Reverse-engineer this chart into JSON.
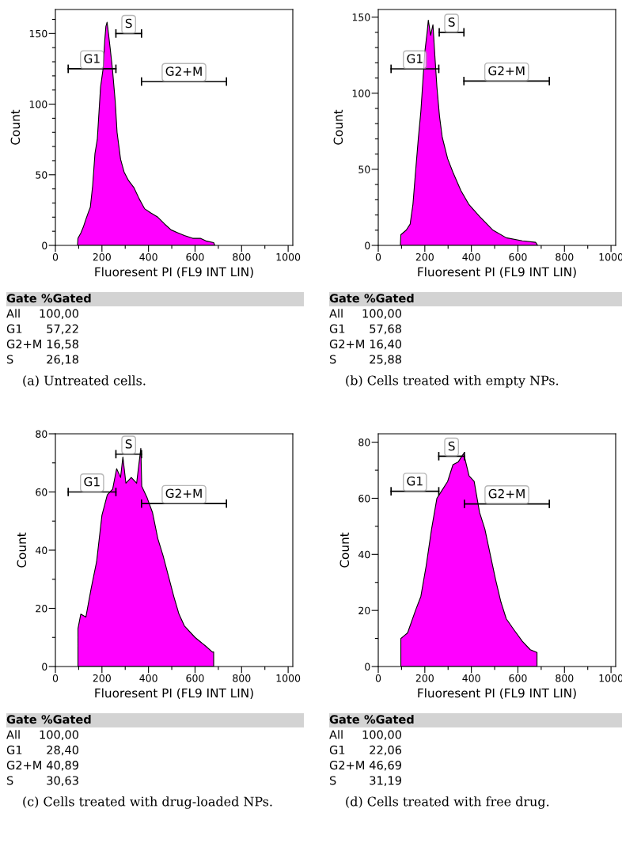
{
  "chart_data": [
    {
      "type": "area",
      "title": "(a) Untreated cells.",
      "xlabel": "Fluoresent PI (FL9 INT LIN)",
      "ylabel": "Count",
      "xlim": [
        0,
        1020
      ],
      "ylim": [
        0,
        167
      ],
      "xticks": [
        0,
        {
          "value": 100,
          "label": null
        },
        200,
        {
          "value": 300,
          "label": null
        },
        400,
        {
          "value": 500,
          "label": null
        },
        600,
        {
          "value": 700,
          "label": null
        },
        800,
        {
          "value": 900,
          "label": null
        },
        1000
      ],
      "yticks": [
        0,
        {
          "value": 10,
          "label": null
        },
        {
          "value": 20,
          "label": null
        },
        {
          "value": 30,
          "label": null
        },
        {
          "value": 40,
          "label": null
        },
        50,
        {
          "value": 60,
          "label": null
        },
        {
          "value": 70,
          "label": null
        },
        {
          "value": 80,
          "label": null
        },
        {
          "value": 90,
          "label": null
        },
        100,
        {
          "value": 110,
          "label": null
        },
        {
          "value": 120,
          "label": null
        },
        {
          "value": 130,
          "label": null
        },
        {
          "value": 140,
          "label": null
        },
        150,
        {
          "value": 160,
          "label": null
        }
      ],
      "series": [
        {
          "color": "#ff00ff",
          "x": [
            95,
            97,
            110,
            120,
            130,
            143,
            150,
            160,
            170,
            180,
            194,
            205,
            212,
            217,
            222,
            228,
            235,
            245,
            257,
            265,
            280,
            295,
            314,
            337,
            360,
            383,
            410,
            440,
            470,
            497,
            525,
            554,
            590,
            623,
            650,
            680,
            685
          ],
          "values": [
            0,
            5,
            9,
            13,
            18,
            24,
            27,
            42,
            65,
            75,
            112,
            125,
            145,
            155,
            158,
            150,
            140,
            125,
            102,
            80,
            61,
            52,
            46,
            41,
            33,
            26,
            23,
            20,
            15,
            11,
            9,
            7,
            5,
            5,
            3,
            2,
            0
          ]
        },
        {
          "type": "line",
          "name": "G1",
          "color": "#000000",
          "x": [
            55,
            260
          ],
          "values": [
            125,
            125
          ]
        },
        {
          "type": "line",
          "name": "S",
          "color": "#000000",
          "x": [
            260,
            370
          ],
          "values": [
            150,
            150
          ]
        },
        {
          "type": "line",
          "name": "G2+M",
          "color": "#000000",
          "x": [
            370,
            735
          ],
          "values": [
            116,
            116
          ]
        }
      ],
      "annotations": [
        "Gate",
        "%Gated",
        "All",
        "100,00",
        "G1",
        "57,22",
        "G2+M",
        "16,58",
        "S",
        "26,18"
      ]
    },
    {
      "type": "area",
      "title": "(b) Cells treated with empty NPs.",
      "xlabel": "Fluoresent PI (FL9 INT LIN)",
      "ylabel": "Count",
      "xlim": [
        0,
        1020
      ],
      "ylim": [
        0,
        155
      ],
      "xticks": [
        0,
        {
          "value": 100,
          "label": null
        },
        200,
        {
          "value": 300,
          "label": null
        },
        400,
        {
          "value": 500,
          "label": null
        },
        600,
        {
          "value": 700,
          "label": null
        },
        800,
        {
          "value": 900,
          "label": null
        },
        1000
      ],
      "yticks": [
        0,
        {
          "value": 10,
          "label": null
        },
        {
          "value": 20,
          "label": null
        },
        {
          "value": 30,
          "label": null
        },
        {
          "value": 40,
          "label": null
        },
        50,
        {
          "value": 60,
          "label": null
        },
        {
          "value": 70,
          "label": null
        },
        {
          "value": 80,
          "label": null
        },
        {
          "value": 90,
          "label": null
        },
        100,
        {
          "value": 110,
          "label": null
        },
        {
          "value": 120,
          "label": null
        },
        {
          "value": 130,
          "label": null
        },
        {
          "value": 140,
          "label": null
        },
        150
      ],
      "series": [
        {
          "color": "#ff00ff",
          "x": [
            95,
            97,
            120,
            137,
            149,
            160,
            172,
            183,
            200,
            210,
            215,
            225,
            235,
            243,
            252,
            263,
            275,
            298,
            321,
            355,
            389,
            435,
            493,
            550,
            619,
            676,
            685
          ],
          "values": [
            0,
            7,
            10,
            14,
            27,
            48,
            70,
            88,
            127,
            140,
            148,
            138,
            145,
            125,
            104,
            85,
            71,
            57,
            48,
            36,
            27,
            19,
            10,
            5,
            3,
            2,
            0
          ]
        },
        {
          "type": "line",
          "name": "G1",
          "color": "#000000",
          "x": [
            55,
            260
          ],
          "values": [
            116,
            116
          ]
        },
        {
          "type": "line",
          "name": "S",
          "color": "#000000",
          "x": [
            262,
            368
          ],
          "values": [
            140,
            140
          ]
        },
        {
          "type": "line",
          "name": "G2+M",
          "color": "#000000",
          "x": [
            368,
            735
          ],
          "values": [
            108,
            108
          ]
        }
      ],
      "annotations": [
        "Gate",
        "%Gated",
        "All",
        "100,00",
        "G1",
        "57,68",
        "G2+M",
        "16,40",
        "S",
        "25,88"
      ]
    },
    {
      "type": "area",
      "title": "(c) Cells treated with drug-loaded NPs.",
      "xlabel": "Fluoresent PI (FL9 INT LIN)",
      "ylabel": "Count",
      "xlim": [
        0,
        1020
      ],
      "ylim": [
        0,
        80
      ],
      "xticks": [
        0,
        {
          "value": 100,
          "label": null
        },
        200,
        {
          "value": 300,
          "label": null
        },
        400,
        {
          "value": 500,
          "label": null
        },
        600,
        {
          "value": 700,
          "label": null
        },
        800,
        {
          "value": 900,
          "label": null
        },
        1000
      ],
      "yticks": [
        0,
        {
          "value": 10,
          "label": null
        },
        20,
        {
          "value": 30,
          "label": null
        },
        40,
        {
          "value": 50,
          "label": null
        },
        60,
        {
          "value": 70,
          "label": null
        },
        80
      ],
      "series": [
        {
          "color": "#ff00ff",
          "x": [
            97,
            97,
            109,
            131,
            154,
            177,
            200,
            223,
            246,
            263,
            280,
            290,
            303,
            326,
            349,
            367,
            371,
            394,
            417,
            440,
            463,
            486,
            509,
            531,
            554,
            600,
            646,
            674,
            680,
            680
          ],
          "values": [
            0,
            13,
            18,
            17,
            27,
            36,
            52,
            59,
            61,
            68,
            65,
            72,
            63,
            65,
            63,
            75,
            62,
            58,
            53,
            44,
            38,
            31,
            24,
            18,
            14,
            10,
            7,
            5,
            5,
            0
          ]
        },
        {
          "type": "line",
          "name": "G1",
          "color": "#000000",
          "x": [
            55,
            260
          ],
          "values": [
            60,
            60
          ]
        },
        {
          "type": "line",
          "name": "S",
          "color": "#000000",
          "x": [
            260,
            370
          ],
          "values": [
            73,
            73
          ]
        },
        {
          "type": "line",
          "name": "G2+M",
          "color": "#000000",
          "x": [
            370,
            735
          ],
          "values": [
            56,
            56
          ]
        }
      ],
      "annotations": [
        "Gate",
        "%Gated",
        "All",
        "100,00",
        "G1",
        "28,40",
        "G2+M",
        "40,89",
        "S",
        "30,63"
      ]
    },
    {
      "type": "area",
      "title": "(d) Cells treated with free drug.",
      "xlabel": "Fluoresent PI (FL9 INT LIN)",
      "ylabel": "Count",
      "xlim": [
        0,
        1020
      ],
      "ylim": [
        0,
        83
      ],
      "xticks": [
        0,
        {
          "value": 100,
          "label": null
        },
        200,
        {
          "value": 300,
          "label": null
        },
        400,
        {
          "value": 500,
          "label": null
        },
        600,
        {
          "value": 700,
          "label": null
        },
        800,
        {
          "value": 900,
          "label": null
        },
        1000
      ],
      "yticks": [
        0,
        {
          "value": 10,
          "label": null
        },
        20,
        {
          "value": 30,
          "label": null
        },
        40,
        {
          "value": 50,
          "label": null
        },
        60,
        {
          "value": 70,
          "label": null
        },
        80
      ],
      "series": [
        {
          "color": "#ff00ff",
          "x": [
            97,
            97,
            126,
            160,
            183,
            206,
            229,
            252,
            275,
            298,
            321,
            344,
            367,
            390,
            412,
            435,
            458,
            481,
            504,
            527,
            550,
            584,
            619,
            653,
            682,
            682
          ],
          "values": [
            0,
            10,
            12,
            20,
            25,
            36,
            49,
            60,
            63,
            66,
            72,
            73,
            76,
            68,
            66,
            55,
            49,
            40,
            31,
            23,
            17,
            13,
            9,
            6,
            5,
            0
          ]
        },
        {
          "type": "line",
          "name": "G1",
          "color": "#000000",
          "x": [
            55,
            260
          ],
          "values": [
            62.5,
            62.5
          ]
        },
        {
          "type": "line",
          "name": "S",
          "color": "#000000",
          "x": [
            260,
            370
          ],
          "values": [
            75,
            75
          ]
        },
        {
          "type": "line",
          "name": "G2+M",
          "color": "#000000",
          "x": [
            370,
            735
          ],
          "values": [
            58,
            58
          ]
        }
      ],
      "annotations": [
        "Gate",
        "%Gated",
        "All",
        "100,00",
        "G1",
        "22,06",
        "G2+M",
        "46,69",
        "S",
        "31,19"
      ]
    }
  ]
}
